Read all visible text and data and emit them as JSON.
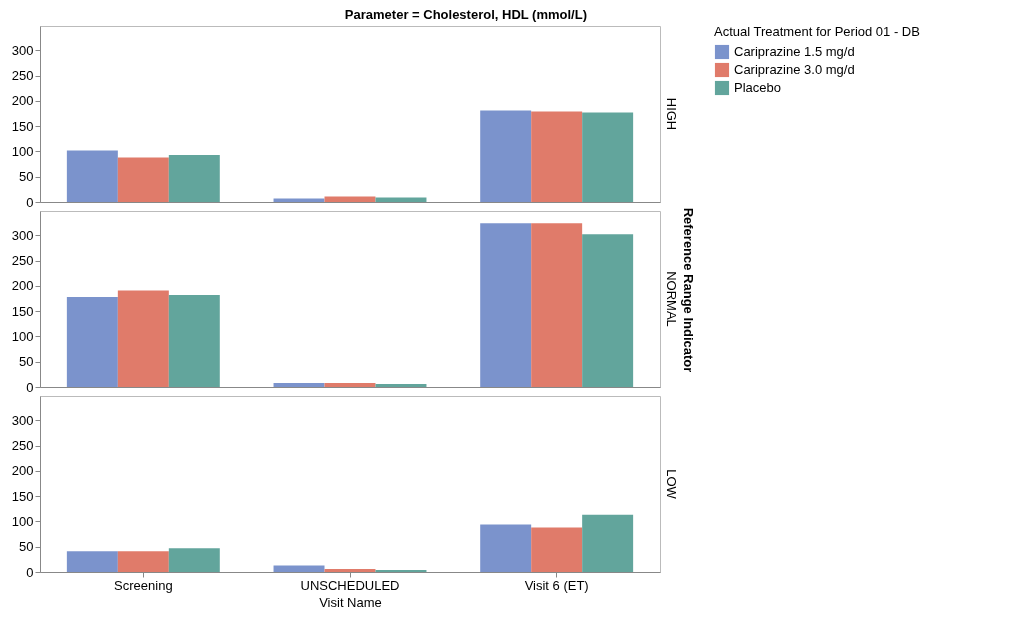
{
  "chart_data": [
    {
      "type": "bar",
      "title": "Parameter = Cholesterol, HDL (mmol/L)",
      "annotations": [
        "HIGH"
      ],
      "legend_title": "Actual Treatment for Period 01 - DB",
      "legend": "right",
      "tick_labels": "y",
      "categories": [
        "Screening",
        "UNSCHEDULED",
        "Visit 6 (ET)"
      ],
      "ylim": [
        0,
        348
      ],
      "yticks": [
        0,
        50,
        100,
        150,
        200,
        250,
        300
      ],
      "series": [
        {
          "name": "Cariprazine 1.5 mg/d",
          "color": "#7b93cc",
          "values": [
            102,
            7,
            181
          ]
        },
        {
          "name": "Cariprazine 3.0 mg/d",
          "color": "#e07b6a",
          "values": [
            88,
            11,
            179
          ]
        },
        {
          "name": "Placebo",
          "color": "#62a59c",
          "values": [
            93,
            9,
            177
          ]
        }
      ]
    },
    {
      "type": "bar",
      "annotations": [
        "NORMAL"
      ],
      "y2label": "Reference Range Indicator",
      "tick_labels": "y",
      "categories": [
        "Screening",
        "UNSCHEDULED",
        "Visit 6 (ET)"
      ],
      "ylim": [
        0,
        348
      ],
      "yticks": [
        0,
        50,
        100,
        150,
        200,
        250,
        300
      ],
      "series": [
        {
          "name": "Cariprazine 1.5 mg/d",
          "color": "#7b93cc",
          "values": [
            178,
            8,
            324
          ]
        },
        {
          "name": "Cariprazine 3.0 mg/d",
          "color": "#e07b6a",
          "values": [
            191,
            8,
            324
          ]
        },
        {
          "name": "Placebo",
          "color": "#62a59c",
          "values": [
            182,
            6,
            302
          ]
        }
      ]
    },
    {
      "type": "bar",
      "annotations": [
        "LOW"
      ],
      "xlabel": "Visit Name",
      "categories": [
        "Screening",
        "UNSCHEDULED",
        "Visit 6 (ET)"
      ],
      "ylim": [
        0,
        348
      ],
      "yticks": [
        0,
        50,
        100,
        150,
        200,
        250,
        300
      ],
      "series": [
        {
          "name": "Cariprazine 1.5 mg/d",
          "color": "#7b93cc",
          "values": [
            41,
            13,
            94
          ]
        },
        {
          "name": "Cariprazine 3.0 mg/d",
          "color": "#e07b6a",
          "values": [
            41,
            6,
            88
          ]
        },
        {
          "name": "Placebo",
          "color": "#62a59c",
          "values": [
            47,
            4,
            113
          ]
        }
      ]
    }
  ]
}
